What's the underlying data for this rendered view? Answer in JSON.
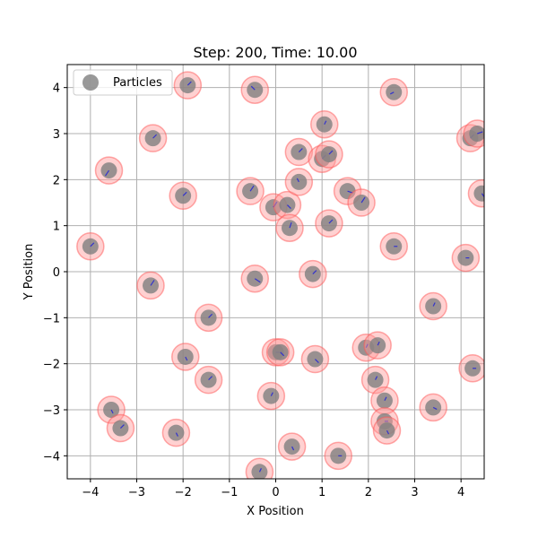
{
  "chart_data": {
    "type": "scatter",
    "title": "Step: 200, Time: 10.00",
    "xlabel": "X Position",
    "ylabel": "Y Position",
    "xlim": [
      -4.5,
      4.5
    ],
    "ylim": [
      -4.5,
      4.5
    ],
    "xticks": [
      -4,
      -3,
      -2,
      -1,
      0,
      1,
      2,
      3,
      4
    ],
    "xtick_labels": [
      "−4",
      "−3",
      "−2",
      "−1",
      "0",
      "1",
      "2",
      "3",
      "4"
    ],
    "yticks": [
      -4,
      -3,
      -2,
      -1,
      0,
      1,
      2,
      3,
      4
    ],
    "ytick_labels": [
      "−4",
      "−3",
      "−2",
      "−1",
      "0",
      "1",
      "2",
      "3",
      "4"
    ],
    "grid": true,
    "legend": {
      "position": "top-left",
      "entries": [
        "Particles"
      ]
    },
    "colors": {
      "particle": "#808080",
      "halo_fill": "#ff9999",
      "halo_edge": "#ff5555",
      "velocity": "#3333cc",
      "grid": "#b0b0b0"
    },
    "series": [
      {
        "name": "Particles",
        "points": [
          {
            "x": -4.0,
            "y": 0.55,
            "vx": 0.1,
            "vy": 0.1
          },
          {
            "x": -3.6,
            "y": 2.2,
            "vx": -0.1,
            "vy": -0.15
          },
          {
            "x": -3.55,
            "y": -3.0,
            "vx": 0.05,
            "vy": -0.1
          },
          {
            "x": -3.35,
            "y": -3.4,
            "vx": 0.1,
            "vy": 0.1
          },
          {
            "x": -2.65,
            "y": 2.9,
            "vx": 0.1,
            "vy": 0.1
          },
          {
            "x": -2.7,
            "y": -0.3,
            "vx": 0.1,
            "vy": 0.15
          },
          {
            "x": -2.0,
            "y": 1.65,
            "vx": 0.1,
            "vy": 0.1
          },
          {
            "x": -1.9,
            "y": 4.05,
            "vx": 0.1,
            "vy": 0.1
          },
          {
            "x": -1.95,
            "y": -1.85,
            "vx": 0.05,
            "vy": -0.1
          },
          {
            "x": -2.15,
            "y": -3.5,
            "vx": 0.05,
            "vy": -0.1
          },
          {
            "x": -1.45,
            "y": -1.0,
            "vx": 0.1,
            "vy": 0.1
          },
          {
            "x": -1.45,
            "y": -2.35,
            "vx": 0.1,
            "vy": 0.1
          },
          {
            "x": -0.55,
            "y": 1.75,
            "vx": 0.1,
            "vy": 0.15
          },
          {
            "x": -0.45,
            "y": 3.95,
            "vx": -0.1,
            "vy": 0.1
          },
          {
            "x": -0.45,
            "y": -0.15,
            "vx": 0.15,
            "vy": -0.1
          },
          {
            "x": -0.35,
            "y": -4.35,
            "vx": 0.05,
            "vy": 0.1
          },
          {
            "x": -0.05,
            "y": 1.4,
            "vx": 0.1,
            "vy": 0.15
          },
          {
            "x": 0.25,
            "y": 1.45,
            "vx": 0.1,
            "vy": -0.1
          },
          {
            "x": 0.3,
            "y": 0.95,
            "vx": 0.05,
            "vy": 0.15
          },
          {
            "x": 0.0,
            "y": -1.75,
            "vx": 0.1,
            "vy": 0.0
          },
          {
            "x": 0.1,
            "y": -1.75,
            "vx": 0.1,
            "vy": -0.1
          },
          {
            "x": -0.1,
            "y": -2.7,
            "vx": 0.05,
            "vy": 0.1
          },
          {
            "x": 0.35,
            "y": -3.8,
            "vx": 0.05,
            "vy": -0.1
          },
          {
            "x": 0.5,
            "y": 2.6,
            "vx": 0.1,
            "vy": 0.1
          },
          {
            "x": 0.5,
            "y": 1.95,
            "vx": -0.05,
            "vy": 0.1
          },
          {
            "x": 0.8,
            "y": -0.05,
            "vx": 0.1,
            "vy": 0.1
          },
          {
            "x": 0.85,
            "y": -1.9,
            "vx": 0.1,
            "vy": -0.1
          },
          {
            "x": 1.05,
            "y": 3.2,
            "vx": 0.05,
            "vy": 0.1
          },
          {
            "x": 1.0,
            "y": 2.45,
            "vx": 0.1,
            "vy": 0.1
          },
          {
            "x": 1.15,
            "y": 2.55,
            "vx": 0.1,
            "vy": 0.1
          },
          {
            "x": 1.15,
            "y": 1.05,
            "vx": 0.1,
            "vy": 0.1
          },
          {
            "x": 1.35,
            "y": -4.0,
            "vx": 0.1,
            "vy": 0.0
          },
          {
            "x": 1.55,
            "y": 1.75,
            "vx": 0.15,
            "vy": -0.05
          },
          {
            "x": 1.85,
            "y": 1.5,
            "vx": 0.1,
            "vy": 0.15
          },
          {
            "x": 1.95,
            "y": -1.65,
            "vx": 0.05,
            "vy": 0.1
          },
          {
            "x": 2.2,
            "y": -1.6,
            "vx": 0.05,
            "vy": 0.1
          },
          {
            "x": 2.15,
            "y": -2.35,
            "vx": 0.05,
            "vy": 0.1
          },
          {
            "x": 2.35,
            "y": -2.8,
            "vx": 0.05,
            "vy": 0.1
          },
          {
            "x": 2.35,
            "y": -3.25,
            "vx": 0.1,
            "vy": 0.0
          },
          {
            "x": 2.4,
            "y": -3.45,
            "vx": 0.05,
            "vy": -0.1
          },
          {
            "x": 2.55,
            "y": 3.9,
            "vx": -0.1,
            "vy": -0.05
          },
          {
            "x": 2.55,
            "y": 0.55,
            "vx": 0.1,
            "vy": 0.0
          },
          {
            "x": 3.4,
            "y": -0.75,
            "vx": 0.05,
            "vy": 0.1
          },
          {
            "x": 3.4,
            "y": -2.95,
            "vx": 0.1,
            "vy": -0.05
          },
          {
            "x": 4.1,
            "y": 0.3,
            "vx": 0.1,
            "vy": 0.0
          },
          {
            "x": 4.2,
            "y": 2.9,
            "vx": 0.1,
            "vy": 0.1
          },
          {
            "x": 4.35,
            "y": 3.0,
            "vx": 0.15,
            "vy": 0.05
          },
          {
            "x": 4.45,
            "y": 1.7,
            "vx": 0.1,
            "vy": -0.15
          },
          {
            "x": 4.25,
            "y": -2.1,
            "vx": 0.1,
            "vy": 0.0
          }
        ]
      }
    ]
  }
}
